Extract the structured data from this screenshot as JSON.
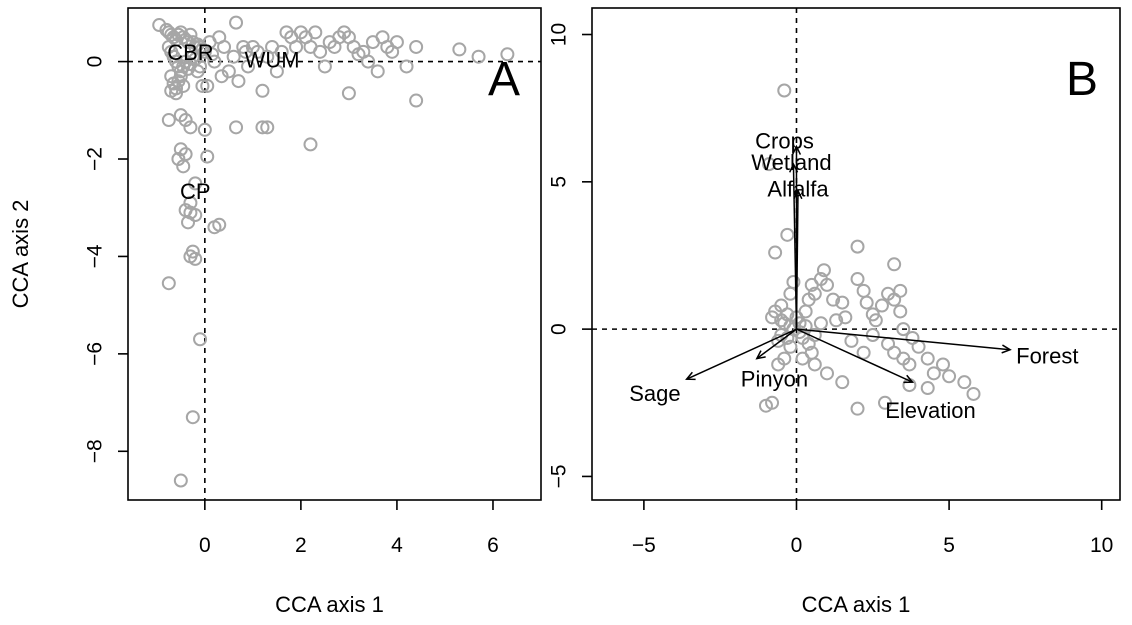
{
  "chart_data": [
    {
      "type": "scatter",
      "panel_label": "A",
      "xlabel": "CCA axis 1",
      "ylabel": "CCA axis 2",
      "xlim": [
        -1.6,
        7.0
      ],
      "ylim": [
        -9.0,
        1.1
      ],
      "xticks": [
        0,
        2,
        4,
        6
      ],
      "yticks": [
        -8,
        -6,
        -4,
        -2,
        0
      ],
      "zero_lines": true,
      "point_color": "#a6a6a6",
      "group_labels": [
        {
          "text": "CBR",
          "x": -0.3,
          "y": 0.15
        },
        {
          "text": "WUM",
          "x": 1.4,
          "y": 0.0
        },
        {
          "text": "CP",
          "x": -0.2,
          "y": -2.7
        }
      ],
      "points": [
        [
          -0.95,
          0.75
        ],
        [
          -0.8,
          0.65
        ],
        [
          -0.75,
          0.6
        ],
        [
          -0.7,
          0.55
        ],
        [
          -0.65,
          0.5
        ],
        [
          -0.6,
          0.45
        ],
        [
          -0.55,
          0.55
        ],
        [
          -0.5,
          0.6
        ],
        [
          -0.45,
          0.5
        ],
        [
          -0.4,
          0.45
        ],
        [
          -0.35,
          0.4
        ],
        [
          -0.3,
          0.55
        ],
        [
          -0.25,
          0.4
        ],
        [
          -0.2,
          0.3
        ],
        [
          -0.15,
          0.35
        ],
        [
          -0.1,
          0.3
        ],
        [
          -0.05,
          0.25
        ],
        [
          0.0,
          0.2
        ],
        [
          -0.75,
          0.3
        ],
        [
          -0.7,
          0.2
        ],
        [
          -0.65,
          0.1
        ],
        [
          -0.6,
          0.0
        ],
        [
          -0.55,
          -0.1
        ],
        [
          -0.5,
          -0.2
        ],
        [
          -0.45,
          -0.1
        ],
        [
          -0.4,
          0.0
        ],
        [
          -0.35,
          -0.15
        ],
        [
          -0.3,
          -0.05
        ],
        [
          -0.25,
          0.1
        ],
        [
          -0.2,
          0.05
        ],
        [
          -0.7,
          -0.3
        ],
        [
          -0.65,
          -0.45
        ],
        [
          -0.6,
          -0.55
        ],
        [
          -0.55,
          -0.4
        ],
        [
          -0.5,
          -0.3
        ],
        [
          -0.45,
          -0.5
        ],
        [
          -0.6,
          -0.65
        ],
        [
          -0.7,
          -0.6
        ],
        [
          -0.15,
          -0.2
        ],
        [
          -0.1,
          -0.1
        ],
        [
          -0.05,
          -0.5
        ],
        [
          0.05,
          -0.5
        ],
        [
          0.1,
          0.4
        ],
        [
          0.15,
          0.15
        ],
        [
          0.2,
          0.0
        ],
        [
          0.3,
          0.5
        ],
        [
          0.35,
          -0.3
        ],
        [
          0.4,
          0.3
        ],
        [
          0.5,
          -0.2
        ],
        [
          0.6,
          0.1
        ],
        [
          0.65,
          0.8
        ],
        [
          0.7,
          -0.4
        ],
        [
          0.8,
          0.3
        ],
        [
          0.85,
          0.2
        ],
        [
          0.9,
          -0.1
        ],
        [
          1.0,
          0.3
        ],
        [
          1.1,
          0.2
        ],
        [
          1.2,
          -0.6
        ],
        [
          1.3,
          0.1
        ],
        [
          1.4,
          0.3
        ],
        [
          1.5,
          -0.2
        ],
        [
          1.6,
          0.2
        ],
        [
          1.7,
          0.6
        ],
        [
          1.8,
          0.5
        ],
        [
          1.9,
          0.3
        ],
        [
          2.0,
          0.6
        ],
        [
          2.1,
          0.5
        ],
        [
          2.2,
          0.3
        ],
        [
          2.3,
          0.6
        ],
        [
          2.4,
          0.2
        ],
        [
          2.5,
          -0.1
        ],
        [
          2.6,
          0.4
        ],
        [
          2.7,
          0.3
        ],
        [
          2.8,
          0.5
        ],
        [
          2.9,
          0.6
        ],
        [
          3.0,
          0.5
        ],
        [
          3.1,
          0.3
        ],
        [
          3.2,
          0.15
        ],
        [
          3.3,
          0.2
        ],
        [
          3.4,
          0.0
        ],
        [
          3.5,
          0.4
        ],
        [
          3.6,
          -0.2
        ],
        [
          3.7,
          0.5
        ],
        [
          3.8,
          0.3
        ],
        [
          3.9,
          0.2
        ],
        [
          4.0,
          0.4
        ],
        [
          4.2,
          -0.1
        ],
        [
          4.4,
          0.3
        ],
        [
          4.4,
          -0.8
        ],
        [
          5.3,
          0.25
        ],
        [
          5.7,
          0.1
        ],
        [
          6.3,
          0.15
        ],
        [
          3.0,
          -0.65
        ],
        [
          2.2,
          -1.7
        ],
        [
          1.2,
          -1.35
        ],
        [
          1.3,
          -1.35
        ],
        [
          0.65,
          -1.35
        ],
        [
          -0.75,
          -1.2
        ],
        [
          -0.5,
          -1.1
        ],
        [
          -0.4,
          -1.2
        ],
        [
          -0.3,
          -1.35
        ],
        [
          0.0,
          -1.4
        ],
        [
          0.05,
          -1.95
        ],
        [
          -0.5,
          -1.8
        ],
        [
          -0.55,
          -2.0
        ],
        [
          -0.45,
          -2.15
        ],
        [
          -0.4,
          -1.9
        ],
        [
          -0.2,
          -2.5
        ],
        [
          -0.3,
          -2.9
        ],
        [
          -0.4,
          -3.05
        ],
        [
          -0.3,
          -3.1
        ],
        [
          -0.35,
          -3.3
        ],
        [
          -0.2,
          -3.15
        ],
        [
          0.2,
          -3.4
        ],
        [
          0.3,
          -3.35
        ],
        [
          -0.25,
          -3.9
        ],
        [
          -0.2,
          -4.05
        ],
        [
          -0.3,
          -4.0
        ],
        [
          -0.75,
          -4.55
        ],
        [
          -0.1,
          -5.7
        ],
        [
          -0.25,
          -7.3
        ],
        [
          -0.5,
          -8.6
        ]
      ]
    },
    {
      "type": "scatter",
      "panel_label": "B",
      "xlabel": "CCA axis 1",
      "ylabel": "",
      "xlim": [
        -6.7,
        10.6
      ],
      "ylim": [
        -5.8,
        10.9
      ],
      "xticks": [
        -5,
        0,
        5,
        10
      ],
      "yticks": [
        -5,
        0,
        5,
        10
      ],
      "zero_lines": true,
      "point_color": "#a6a6a6",
      "points": [
        [
          -0.4,
          8.1
        ],
        [
          -0.9,
          5.6
        ],
        [
          -0.3,
          3.2
        ],
        [
          -0.7,
          2.6
        ],
        [
          -0.1,
          1.6
        ],
        [
          0.5,
          1.5
        ],
        [
          0.6,
          1.2
        ],
        [
          0.8,
          1.7
        ],
        [
          0.9,
          2.0
        ],
        [
          1.0,
          1.5
        ],
        [
          1.2,
          1.0
        ],
        [
          1.5,
          0.9
        ],
        [
          2.0,
          2.8
        ],
        [
          2.0,
          1.7
        ],
        [
          2.2,
          1.3
        ],
        [
          2.5,
          0.5
        ],
        [
          3.2,
          2.2
        ],
        [
          3.0,
          1.2
        ],
        [
          3.2,
          1.0
        ],
        [
          3.4,
          0.6
        ],
        [
          2.8,
          0.8
        ],
        [
          2.5,
          -0.2
        ],
        [
          3.0,
          -0.5
        ],
        [
          3.2,
          -0.8
        ],
        [
          3.5,
          -1.0
        ],
        [
          3.7,
          -1.2
        ],
        [
          4.0,
          -0.6
        ],
        [
          4.3,
          -1.0
        ],
        [
          4.5,
          -1.5
        ],
        [
          4.8,
          -1.2
        ],
        [
          5.0,
          -1.6
        ],
        [
          5.5,
          -1.8
        ],
        [
          5.8,
          -2.2
        ],
        [
          3.7,
          -1.9
        ],
        [
          4.3,
          -2.0
        ],
        [
          2.9,
          -2.5
        ],
        [
          2.0,
          -2.7
        ],
        [
          1.5,
          -1.8
        ],
        [
          1.0,
          -1.5
        ],
        [
          0.6,
          -1.2
        ],
        [
          -0.8,
          -2.5
        ],
        [
          -1.0,
          -2.6
        ],
        [
          -0.4,
          -1.0
        ],
        [
          -0.2,
          -0.6
        ],
        [
          -0.5,
          0.3
        ],
        [
          -0.3,
          0.5
        ],
        [
          -0.2,
          0.1
        ],
        [
          0.1,
          0.2
        ],
        [
          0.2,
          -0.3
        ],
        [
          0.4,
          -0.5
        ],
        [
          0.6,
          -0.2
        ],
        [
          0.8,
          0.2
        ],
        [
          -0.6,
          -0.4
        ],
        [
          -0.7,
          0.6
        ],
        [
          -0.5,
          0.8
        ],
        [
          -0.2,
          1.2
        ],
        [
          0.3,
          0.6
        ],
        [
          0.4,
          1.0
        ],
        [
          0.2,
          -1.0
        ],
        [
          1.3,
          0.3
        ],
        [
          1.6,
          0.4
        ],
        [
          1.8,
          -0.4
        ],
        [
          2.2,
          -0.8
        ],
        [
          -0.5,
          -0.2
        ],
        [
          -0.4,
          0.2
        ],
        [
          -0.3,
          -0.3
        ],
        [
          -0.1,
          0.0
        ],
        [
          0.0,
          0.4
        ],
        [
          0.1,
          -0.1
        ],
        [
          0.3,
          0.1
        ],
        [
          3.5,
          0.0
        ],
        [
          3.8,
          -0.3
        ],
        [
          2.6,
          0.3
        ],
        [
          2.3,
          0.9
        ],
        [
          3.4,
          1.3
        ],
        [
          -0.8,
          0.4
        ],
        [
          -0.6,
          -1.2
        ],
        [
          0.5,
          -0.8
        ]
      ],
      "vectors": [
        {
          "label": "Crops",
          "x": 0.0,
          "y": 6.2
        },
        {
          "label": "Wetland",
          "x": -0.1,
          "y": 5.6
        },
        {
          "label": "Alfalfa",
          "x": 0.05,
          "y": 4.7
        },
        {
          "label": "Forest",
          "x": 7.0,
          "y": -0.7
        },
        {
          "label": "Elevation",
          "x": 3.8,
          "y": -1.8
        },
        {
          "label": "Pinyon",
          "x": -1.3,
          "y": -1.0
        },
        {
          "label": "Sage",
          "x": -3.6,
          "y": -1.7
        }
      ]
    }
  ]
}
